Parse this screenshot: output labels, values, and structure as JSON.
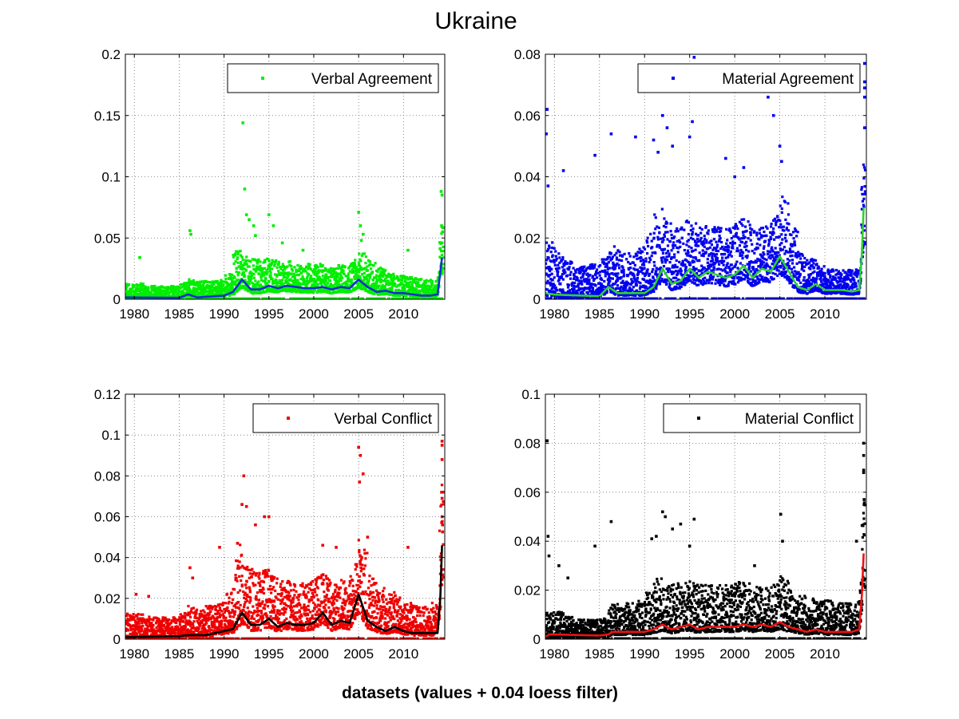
{
  "figure": {
    "title": "Ukraine",
    "xlabel": "datasets (values + 0.04 loess filter)"
  },
  "chart_data": [
    {
      "type": "scatter",
      "legend": "Verbal Agreement",
      "legend_placement": "top-right",
      "grid": true,
      "xlim": [
        1979,
        2014.6
      ],
      "ylim": [
        0,
        0.2
      ],
      "xticks": [
        1980,
        1985,
        1990,
        1995,
        2000,
        2005,
        2010
      ],
      "yticks": [
        0,
        0.05,
        0.1,
        0.15,
        0.2
      ],
      "ytick_labels": [
        "0",
        "0.05",
        "0.1",
        "0.15",
        "0.2"
      ],
      "point_color": "#00ee00",
      "line_color": "#1a2bd6",
      "base_noise": [
        0.012,
        0.012,
        0.01,
        0.01,
        0.01,
        0.01,
        0.012,
        0.014,
        0.014,
        0.013,
        0.014,
        0.018,
        0.035,
        0.03,
        0.028,
        0.028,
        0.026,
        0.025,
        0.025,
        0.024,
        0.024,
        0.023,
        0.022,
        0.022,
        0.022,
        0.024,
        0.03,
        0.026,
        0.022,
        0.018,
        0.016,
        0.016,
        0.015,
        0.014,
        0.014,
        0.04
      ],
      "smooth": [
        [
          1979,
          0.0015
        ],
        [
          1985,
          0.0012
        ],
        [
          1986,
          0.004
        ],
        [
          1987,
          0.0015
        ],
        [
          1990,
          0.003
        ],
        [
          1991,
          0.006
        ],
        [
          1992,
          0.016
        ],
        [
          1993,
          0.008
        ],
        [
          1994,
          0.008
        ],
        [
          1995,
          0.011
        ],
        [
          1996,
          0.009
        ],
        [
          1997,
          0.011
        ],
        [
          1998,
          0.01
        ],
        [
          1999,
          0.009
        ],
        [
          2000,
          0.009
        ],
        [
          2001,
          0.01
        ],
        [
          2002,
          0.008
        ],
        [
          2003,
          0.01
        ],
        [
          2004,
          0.009
        ],
        [
          2005,
          0.016
        ],
        [
          2006,
          0.01
        ],
        [
          2007,
          0.006
        ],
        [
          2008,
          0.007
        ],
        [
          2009,
          0.005
        ],
        [
          2010,
          0.005
        ],
        [
          2011,
          0.004
        ],
        [
          2012,
          0.003
        ],
        [
          2013,
          0.003
        ],
        [
          2013.8,
          0.004
        ],
        [
          2014.1,
          0.022
        ],
        [
          2014.3,
          0.034
        ]
      ],
      "outliers": [
        [
          1980.6,
          0.034
        ],
        [
          1986.2,
          0.056
        ],
        [
          1986.3,
          0.053
        ],
        [
          1992.1,
          0.144
        ],
        [
          1992.3,
          0.09
        ],
        [
          1992.5,
          0.069
        ],
        [
          1992.8,
          0.065
        ],
        [
          1993.3,
          0.06
        ],
        [
          1993.5,
          0.052
        ],
        [
          1995.0,
          0.069
        ],
        [
          1995.5,
          0.06
        ],
        [
          1996.5,
          0.046
        ],
        [
          1998.8,
          0.04
        ],
        [
          2005.0,
          0.071
        ],
        [
          2005.2,
          0.06
        ],
        [
          2005.5,
          0.053
        ],
        [
          2005.3,
          0.048
        ],
        [
          2010.5,
          0.04
        ],
        [
          2014.2,
          0.088
        ],
        [
          2014.3,
          0.085
        ],
        [
          2014.25,
          0.06
        ],
        [
          2014.35,
          0.055
        ],
        [
          2014.3,
          0.046
        ]
      ]
    },
    {
      "type": "scatter",
      "legend": "Material Agreement",
      "legend_placement": "top-right",
      "grid": true,
      "xlim": [
        1979,
        2014.6
      ],
      "ylim": [
        0,
        0.08
      ],
      "xticks": [
        1980,
        1985,
        1990,
        1995,
        2000,
        2005,
        2010
      ],
      "yticks": [
        0,
        0.02,
        0.04,
        0.06,
        0.08
      ],
      "ytick_labels": [
        "0",
        "0.02",
        "0.04",
        "0.06",
        "0.08"
      ],
      "point_color": "#0000ee",
      "line_color": "#2ed12e",
      "base_noise": [
        0.018,
        0.015,
        0.012,
        0.01,
        0.01,
        0.011,
        0.012,
        0.016,
        0.015,
        0.014,
        0.016,
        0.02,
        0.025,
        0.022,
        0.02,
        0.021,
        0.02,
        0.02,
        0.019,
        0.019,
        0.019,
        0.02,
        0.02,
        0.018,
        0.018,
        0.02,
        0.026,
        0.02,
        0.013,
        0.011,
        0.009,
        0.008,
        0.008,
        0.008,
        0.008,
        0.03
      ],
      "smooth": [
        [
          1979,
          0.002
        ],
        [
          1980,
          0.0015
        ],
        [
          1985,
          0.001
        ],
        [
          1986,
          0.004
        ],
        [
          1987,
          0.002
        ],
        [
          1990,
          0.002
        ],
        [
          1991,
          0.004
        ],
        [
          1992,
          0.01
        ],
        [
          1993,
          0.005
        ],
        [
          1994,
          0.006
        ],
        [
          1995,
          0.01
        ],
        [
          1996,
          0.007
        ],
        [
          1997,
          0.009
        ],
        [
          1998,
          0.008
        ],
        [
          1999,
          0.007
        ],
        [
          2000,
          0.008
        ],
        [
          2001,
          0.011
        ],
        [
          2002,
          0.007
        ],
        [
          2003,
          0.01
        ],
        [
          2004,
          0.009
        ],
        [
          2005,
          0.014
        ],
        [
          2006,
          0.009
        ],
        [
          2007,
          0.004
        ],
        [
          2008,
          0.003
        ],
        [
          2009,
          0.005
        ],
        [
          2010,
          0.003
        ],
        [
          2011,
          0.003
        ],
        [
          2012,
          0.003
        ],
        [
          2013,
          0.0025
        ],
        [
          2013.8,
          0.003
        ],
        [
          2014.1,
          0.015
        ],
        [
          2014.3,
          0.03
        ]
      ],
      "outliers": [
        [
          1979.2,
          0.062
        ],
        [
          1979.1,
          0.054
        ],
        [
          1979.3,
          0.037
        ],
        [
          1981.0,
          0.042
        ],
        [
          1984.5,
          0.047
        ],
        [
          1986.3,
          0.054
        ],
        [
          1989.0,
          0.053
        ],
        [
          1991.0,
          0.052
        ],
        [
          1991.5,
          0.048
        ],
        [
          1992.0,
          0.06
        ],
        [
          1992.5,
          0.056
        ],
        [
          1993.1,
          0.05
        ],
        [
          1995.5,
          0.079
        ],
        [
          1995.3,
          0.058
        ],
        [
          1995.0,
          0.053
        ],
        [
          1999.0,
          0.046
        ],
        [
          2000.0,
          0.04
        ],
        [
          2001.0,
          0.043
        ],
        [
          2003.7,
          0.066
        ],
        [
          2004.3,
          0.06
        ],
        [
          2005.0,
          0.05
        ],
        [
          2005.2,
          0.045
        ],
        [
          2014.4,
          0.077
        ],
        [
          2014.4,
          0.071
        ],
        [
          2014.4,
          0.069
        ],
        [
          2014.4,
          0.066
        ],
        [
          2014.4,
          0.056
        ]
      ]
    },
    {
      "type": "scatter",
      "legend": "Verbal Conflict",
      "legend_placement": "top-right",
      "grid": true,
      "xlim": [
        1979,
        2014.6
      ],
      "ylim": [
        0,
        0.12
      ],
      "xticks": [
        1980,
        1985,
        1990,
        1995,
        2000,
        2005,
        2010
      ],
      "yticks": [
        0,
        0.02,
        0.04,
        0.06,
        0.08,
        0.1,
        0.12
      ],
      "ytick_labels": [
        "0",
        "0.02",
        "0.04",
        "0.06",
        "0.08",
        "0.1",
        "0.12"
      ],
      "point_color": "#ee0000",
      "line_color": "#000000",
      "base_noise": [
        0.012,
        0.012,
        0.011,
        0.01,
        0.01,
        0.01,
        0.012,
        0.015,
        0.014,
        0.015,
        0.016,
        0.02,
        0.04,
        0.03,
        0.032,
        0.03,
        0.026,
        0.025,
        0.025,
        0.024,
        0.024,
        0.025,
        0.025,
        0.023,
        0.024,
        0.028,
        0.038,
        0.028,
        0.024,
        0.02,
        0.018,
        0.016,
        0.015,
        0.014,
        0.016,
        0.05
      ],
      "smooth": [
        [
          1979,
          0.001
        ],
        [
          1985,
          0.0015
        ],
        [
          1986,
          0.002
        ],
        [
          1988,
          0.002
        ],
        [
          1989,
          0.003
        ],
        [
          1990,
          0.004
        ],
        [
          1991,
          0.005
        ],
        [
          1992,
          0.013
        ],
        [
          1993,
          0.007
        ],
        [
          1994,
          0.007
        ],
        [
          1995,
          0.01
        ],
        [
          1996,
          0.006
        ],
        [
          1997,
          0.008
        ],
        [
          1998,
          0.007
        ],
        [
          1999,
          0.007
        ],
        [
          2000,
          0.008
        ],
        [
          2001,
          0.013
        ],
        [
          2002,
          0.007
        ],
        [
          2003,
          0.009
        ],
        [
          2004,
          0.008
        ],
        [
          2005,
          0.022
        ],
        [
          2006,
          0.009
        ],
        [
          2007,
          0.006
        ],
        [
          2008,
          0.004
        ],
        [
          2009,
          0.006
        ],
        [
          2010,
          0.004
        ],
        [
          2011,
          0.003
        ],
        [
          2012,
          0.003
        ],
        [
          2013,
          0.003
        ],
        [
          2013.8,
          0.003
        ],
        [
          2014.1,
          0.02
        ],
        [
          2014.3,
          0.046
        ]
      ],
      "outliers": [
        [
          1980.2,
          0.022
        ],
        [
          1981.6,
          0.021
        ],
        [
          1986.2,
          0.035
        ],
        [
          1986.5,
          0.03
        ],
        [
          1989.5,
          0.045
        ],
        [
          1991.5,
          0.047
        ],
        [
          1992.2,
          0.08
        ],
        [
          1992.0,
          0.066
        ],
        [
          1992.5,
          0.065
        ],
        [
          1993.5,
          0.056
        ],
        [
          1994.5,
          0.06
        ],
        [
          1995.0,
          0.06
        ],
        [
          2001.0,
          0.046
        ],
        [
          2002.5,
          0.045
        ],
        [
          2005.0,
          0.094
        ],
        [
          2005.2,
          0.09
        ],
        [
          2005.5,
          0.081
        ],
        [
          2005.1,
          0.077
        ],
        [
          2006.0,
          0.05
        ],
        [
          2010.5,
          0.045
        ],
        [
          2014.3,
          0.097
        ],
        [
          2014.3,
          0.095
        ],
        [
          2014.3,
          0.088
        ],
        [
          2014.25,
          0.072
        ],
        [
          2014.3,
          0.069
        ],
        [
          2014.3,
          0.06
        ],
        [
          2014.35,
          0.056
        ]
      ]
    },
    {
      "type": "scatter",
      "legend": "Material Conflict",
      "legend_placement": "top-right",
      "grid": true,
      "xlim": [
        1979,
        2014.6
      ],
      "ylim": [
        0,
        0.1
      ],
      "xticks": [
        1980,
        1985,
        1990,
        1995,
        2000,
        2005,
        2010
      ],
      "yticks": [
        0,
        0.02,
        0.04,
        0.06,
        0.08,
        0.1
      ],
      "ytick_labels": [
        "0",
        "0.02",
        "0.04",
        "0.06",
        "0.08",
        "0.1"
      ],
      "point_color": "#000000",
      "line_color": "#ee1111",
      "base_noise": [
        0.01,
        0.01,
        0.008,
        0.007,
        0.007,
        0.007,
        0.008,
        0.013,
        0.013,
        0.013,
        0.014,
        0.017,
        0.022,
        0.019,
        0.02,
        0.02,
        0.02,
        0.02,
        0.019,
        0.019,
        0.019,
        0.02,
        0.02,
        0.018,
        0.018,
        0.019,
        0.022,
        0.018,
        0.016,
        0.015,
        0.014,
        0.014,
        0.013,
        0.013,
        0.014,
        0.04
      ],
      "smooth": [
        [
          1979,
          0.001
        ],
        [
          1979.5,
          0.002
        ],
        [
          1985,
          0.0015
        ],
        [
          1986,
          0.002
        ],
        [
          1986.5,
          0.003
        ],
        [
          1990,
          0.003
        ],
        [
          1991,
          0.004
        ],
        [
          1992,
          0.006
        ],
        [
          1993,
          0.004
        ],
        [
          1994,
          0.005
        ],
        [
          1995,
          0.006
        ],
        [
          1996,
          0.004
        ],
        [
          1997,
          0.005
        ],
        [
          1998,
          0.005
        ],
        [
          1999,
          0.005
        ],
        [
          2000,
          0.005
        ],
        [
          2001,
          0.006
        ],
        [
          2002,
          0.005
        ],
        [
          2003,
          0.006
        ],
        [
          2004,
          0.005
        ],
        [
          2005,
          0.007
        ],
        [
          2006,
          0.005
        ],
        [
          2007,
          0.004
        ],
        [
          2008,
          0.003
        ],
        [
          2009,
          0.004
        ],
        [
          2010,
          0.003
        ],
        [
          2011,
          0.003
        ],
        [
          2012,
          0.003
        ],
        [
          2013,
          0.003
        ],
        [
          2013.8,
          0.004
        ],
        [
          2014.1,
          0.018
        ],
        [
          2014.3,
          0.035
        ]
      ],
      "outliers": [
        [
          1979.2,
          0.081
        ],
        [
          1979.3,
          0.042
        ],
        [
          1979.4,
          0.034
        ],
        [
          1980.5,
          0.03
        ],
        [
          1981.5,
          0.025
        ],
        [
          1984.5,
          0.038
        ],
        [
          1986.3,
          0.048
        ],
        [
          1990.8,
          0.041
        ],
        [
          1991.3,
          0.042
        ],
        [
          1992.0,
          0.052
        ],
        [
          1992.3,
          0.05
        ],
        [
          1993.1,
          0.045
        ],
        [
          1994.0,
          0.047
        ],
        [
          1995.0,
          0.038
        ],
        [
          1995.5,
          0.049
        ],
        [
          2002.2,
          0.03
        ],
        [
          2005.1,
          0.051
        ],
        [
          2005.3,
          0.04
        ],
        [
          2013.5,
          0.04
        ],
        [
          2014.3,
          0.08
        ],
        [
          2014.3,
          0.075
        ],
        [
          2014.3,
          0.069
        ],
        [
          2014.3,
          0.068
        ],
        [
          2014.35,
          0.057
        ],
        [
          2014.35,
          0.055
        ]
      ]
    }
  ]
}
